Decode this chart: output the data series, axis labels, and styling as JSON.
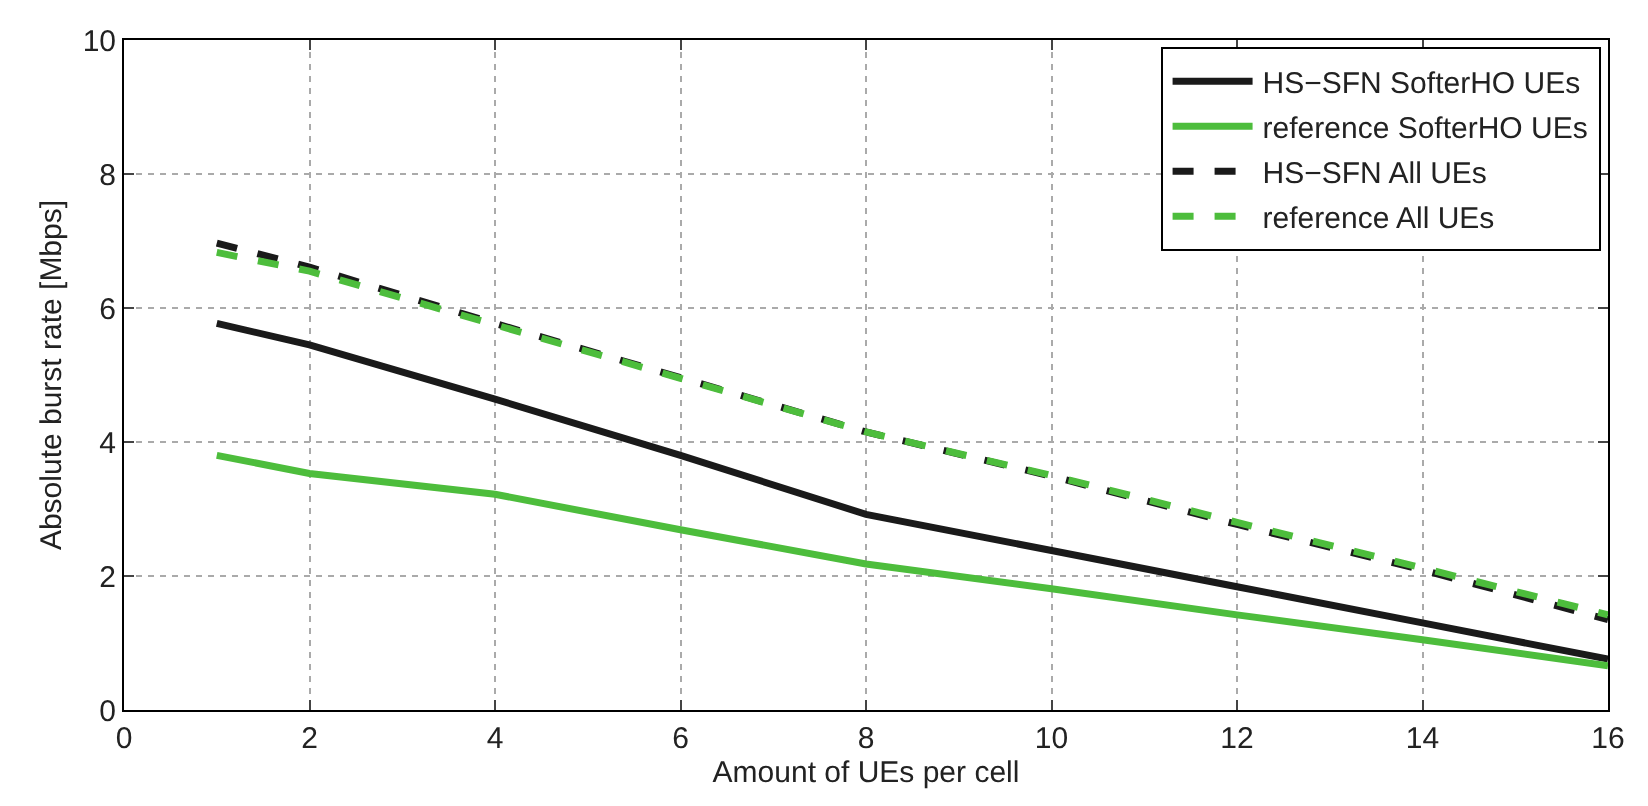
{
  "chart_data": {
    "type": "line",
    "xlabel": "Amount of UEs per cell",
    "ylabel": "Absolute burst rate [Mbps]",
    "x": [
      1,
      2,
      4,
      6,
      8,
      10,
      12,
      14,
      16
    ],
    "series": [
      {
        "name": "HS−SFN SofterHO UEs",
        "color": "#1a1a1a",
        "line_style": "solid",
        "values": [
          5.77,
          5.45,
          4.64,
          3.8,
          2.92,
          2.38,
          1.84,
          1.3,
          0.76
        ]
      },
      {
        "name": "reference SofterHO UEs",
        "color": "#4dbd3c",
        "line_style": "solid",
        "values": [
          3.8,
          3.53,
          3.22,
          2.69,
          2.18,
          1.81,
          1.42,
          1.05,
          0.66
        ]
      },
      {
        "name": "HS−SFN All UEs",
        "color": "#1a1a1a",
        "line_style": "dashed",
        "values": [
          6.97,
          6.61,
          5.77,
          4.96,
          4.15,
          3.49,
          2.77,
          2.09,
          1.35
        ]
      },
      {
        "name": "reference All UEs",
        "color": "#4dbd3c",
        "line_style": "dashed",
        "values": [
          6.83,
          6.55,
          5.75,
          4.95,
          4.15,
          3.5,
          2.8,
          2.12,
          1.42
        ]
      }
    ],
    "xlim": [
      0,
      16
    ],
    "xticks": [
      0,
      2,
      4,
      6,
      8,
      10,
      12,
      14,
      16
    ],
    "ylim": [
      0,
      10
    ],
    "yticks": [
      0,
      2,
      4,
      6,
      8,
      10
    ],
    "grid": true,
    "legend": "top right",
    "marker": "none"
  }
}
